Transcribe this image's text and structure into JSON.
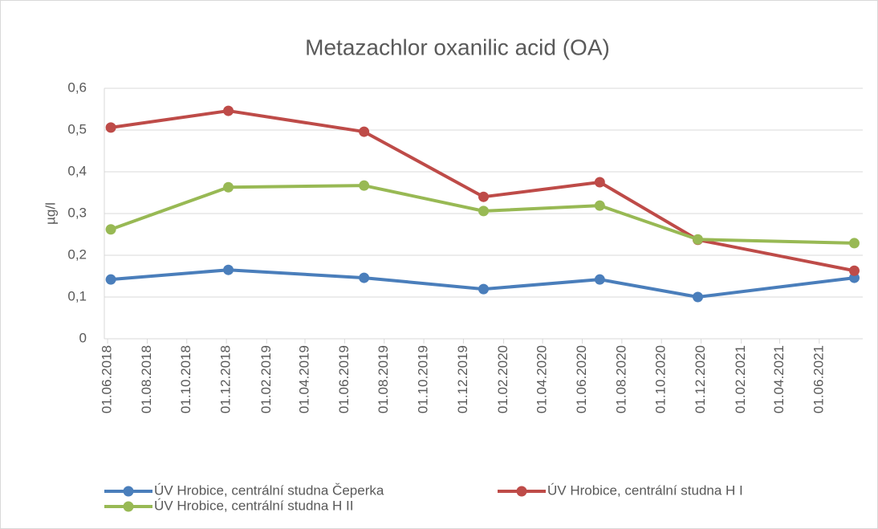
{
  "chart_data": {
    "type": "line",
    "title": "Metazachlor oxanilic acid (OA)",
    "y_label": "µg/l",
    "x": [
      "2018-06-06",
      "2018-12-04",
      "2019-07-01",
      "2020-01-01",
      "2020-06-28",
      "2020-11-26",
      "2021-07-25"
    ],
    "series": [
      {
        "name": "ÚV Hrobice, centrální studna Čeperka",
        "color": "#4a7ebb",
        "values": [
          0.142,
          0.165,
          0.146,
          0.119,
          0.142,
          0.1,
          0.146
        ]
      },
      {
        "name": "ÚV Hrobice, centrální studna H I",
        "color": "#be4b48",
        "values": [
          0.506,
          0.546,
          0.496,
          0.34,
          0.375,
          0.237,
          0.163
        ]
      },
      {
        "name": "ÚV Hrobice, centrální studna H II",
        "color": "#98b954",
        "values": [
          0.262,
          0.363,
          0.367,
          0.306,
          0.319,
          0.238,
          0.229
        ]
      }
    ],
    "xlim": [
      "2018-05-27",
      "2021-08-07"
    ],
    "xticks": [
      {
        "value": "2018-06-01",
        "label": "01.06.2018"
      },
      {
        "value": "2018-08-01",
        "label": "01.08.2018"
      },
      {
        "value": "2018-10-01",
        "label": "01.10.2018"
      },
      {
        "value": "2018-12-01",
        "label": "01.12.2018"
      },
      {
        "value": "2019-02-01",
        "label": "01.02.2019"
      },
      {
        "value": "2019-04-01",
        "label": "01.04.2019"
      },
      {
        "value": "2019-06-01",
        "label": "01.06.2019"
      },
      {
        "value": "2019-08-01",
        "label": "01.08.2019"
      },
      {
        "value": "2019-10-01",
        "label": "01.10.2019"
      },
      {
        "value": "2019-12-01",
        "label": "01.12.2019"
      },
      {
        "value": "2020-02-01",
        "label": "01.02.2020"
      },
      {
        "value": "2020-04-01",
        "label": "01.04.2020"
      },
      {
        "value": "2020-06-01",
        "label": "01.06.2020"
      },
      {
        "value": "2020-08-01",
        "label": "01.08.2020"
      },
      {
        "value": "2020-10-01",
        "label": "01.10.2020"
      },
      {
        "value": "2020-12-01",
        "label": "01.12.2020"
      },
      {
        "value": "2021-02-01",
        "label": "01.02.2021"
      },
      {
        "value": "2021-04-01",
        "label": "01.04.2021"
      },
      {
        "value": "2021-06-01",
        "label": "01.06.2021"
      }
    ],
    "ylim": [
      0,
      0.6
    ],
    "yticks": [
      0,
      {
        "value": 0.1,
        "label": "0,1"
      },
      {
        "value": 0.2,
        "label": "0,2"
      },
      {
        "value": 0.3,
        "label": "0,3"
      },
      {
        "value": 0.4,
        "label": "0,4"
      },
      {
        "value": 0.5,
        "label": "0,5"
      },
      {
        "value": 0.6,
        "label": "0,6"
      }
    ],
    "grid": true
  }
}
